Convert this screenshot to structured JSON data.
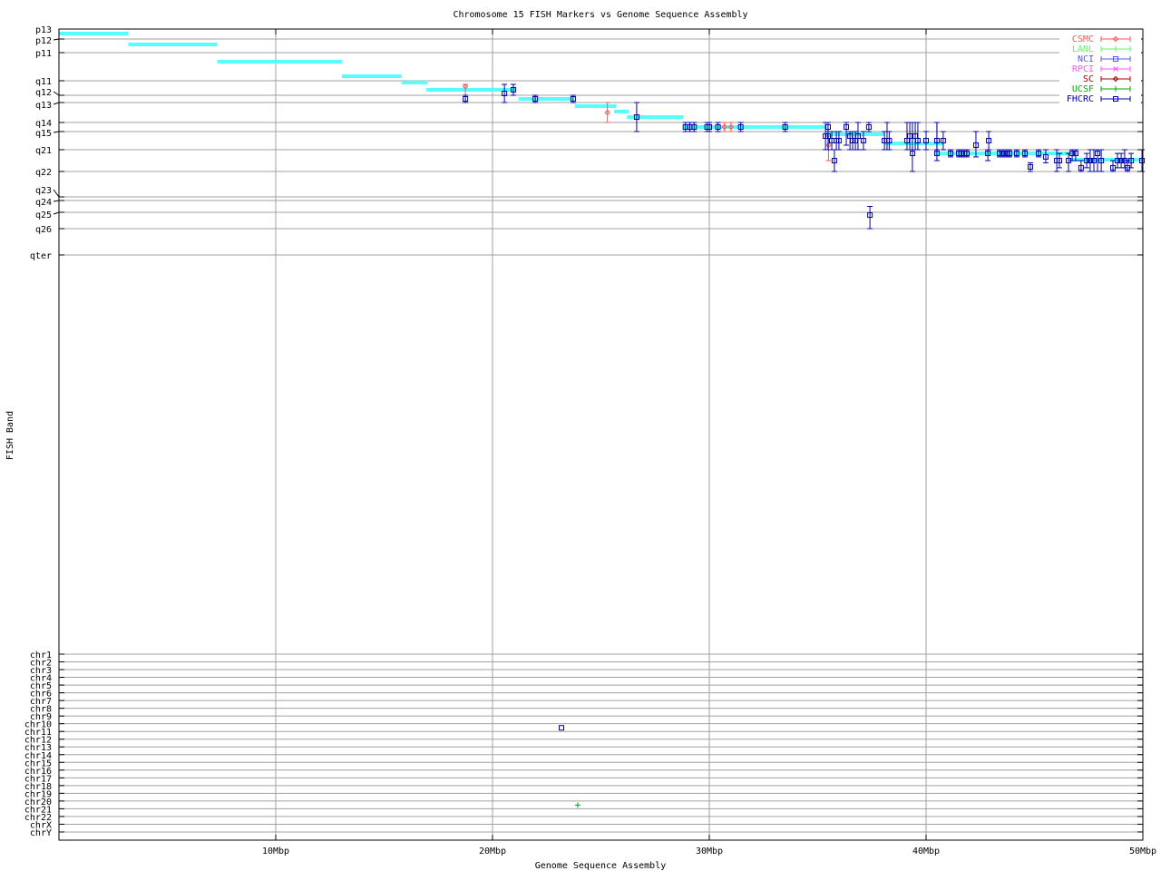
{
  "chart_data": {
    "type": "scatter",
    "title": "Chromosome 15 FISH Markers vs Genome Sequence Assembly",
    "xlabel": "Genome Sequence Assembly",
    "ylabel": "FISH Band",
    "xlim": [
      0,
      50
    ],
    "x_ticks": [
      {
        "value": 10,
        "label": "10Mbp"
      },
      {
        "value": 20,
        "label": "20Mbp"
      },
      {
        "value": 30,
        "label": "30Mbp"
      },
      {
        "value": 40,
        "label": "40Mbp"
      },
      {
        "value": 50,
        "label": "50Mbp"
      }
    ],
    "grid": true,
    "legend_position": "top-right",
    "band_ticks": [
      "p13",
      "p12",
      "p11",
      "q11",
      "q12",
      "q13",
      "q14",
      "q15",
      "q21",
      "q22",
      "q23",
      "q24",
      "q25",
      "q26",
      "qter"
    ],
    "chromosome_ticks": [
      "chr1",
      "chr2",
      "chr3",
      "chr4",
      "chr5",
      "chr6",
      "chr7",
      "chr8",
      "chr9",
      "chr10",
      "chr11",
      "chr12",
      "chr13",
      "chr14",
      "chr15",
      "chr16",
      "chr17",
      "chr18",
      "chr19",
      "chr20",
      "chr21",
      "chr22",
      "chrX",
      "chrY"
    ],
    "assembly_color": "#55ffff",
    "assembly_segments": [
      {
        "x_start": 0,
        "x_end": 3.2,
        "band_pos": 0.45
      },
      {
        "x_start": 3.2,
        "x_end": 7.3,
        "band_pos": 1.4
      },
      {
        "x_start": 7.3,
        "x_end": 13.05,
        "band_pos": 2.32
      },
      {
        "x_start": 13.05,
        "x_end": 15.8,
        "band_pos": 2.84
      },
      {
        "x_start": 15.8,
        "x_end": 17.0,
        "band_pos": 3.12
      },
      {
        "x_start": 16.95,
        "x_end": 21.1,
        "band_pos": 3.62
      },
      {
        "x_start": 21.2,
        "x_end": 23.7,
        "band_pos": 4.5
      },
      {
        "x_start": 23.8,
        "x_end": 25.7,
        "band_pos": 5.18
      },
      {
        "x_start": 25.6,
        "x_end": 26.3,
        "band_pos": 5.45
      },
      {
        "x_start": 26.2,
        "x_end": 28.8,
        "band_pos": 5.73
      },
      {
        "x_start": 28.8,
        "x_end": 35.4,
        "band_pos": 6.5
      },
      {
        "x_start": 35.4,
        "x_end": 38.1,
        "band_pos": 7.15
      },
      {
        "x_start": 38.1,
        "x_end": 40.8,
        "band_pos": 7.65
      },
      {
        "x_start": 40.4,
        "x_end": 46.6,
        "band_pos": 8.17
      },
      {
        "x_start": 46.6,
        "x_end": 50,
        "band_pos": 8.46
      }
    ],
    "point_fields": [
      "x_mbp",
      "band_pos",
      "band_low",
      "band_high"
    ],
    "series": [
      {
        "name": "CSMC",
        "color": "#ff5555",
        "marker": "diamond",
        "points": [
          [
            18.75,
            3.4,
            3.25,
            4
          ],
          [
            25.3,
            5.5,
            5,
            6
          ],
          [
            30.7,
            6.5,
            6,
            7
          ],
          [
            31.0,
            6.5,
            6,
            7
          ],
          [
            35.5,
            7.75,
            7.25,
            8.5
          ]
        ]
      },
      {
        "name": "LANL",
        "color": "#55ff55",
        "marker": "tick",
        "points": []
      },
      {
        "name": "NCI",
        "color": "#5555ff",
        "marker": "square",
        "points": []
      },
      {
        "name": "RPCI",
        "color": "#ff55ff",
        "marker": "cross",
        "points": []
      },
      {
        "name": "SC",
        "color": "#aa0000",
        "marker": "diamond",
        "points": []
      },
      {
        "name": "UCSF",
        "color": "#00aa00",
        "marker": "tick",
        "points": []
      },
      {
        "name": "FHCRC",
        "color": "#0000aa",
        "marker": "square",
        "points": [
          [
            18.75,
            4.5,
            4,
            5
          ],
          [
            20.55,
            3.875,
            3.25,
            5
          ],
          [
            20.96,
            3.62,
            3.25,
            4
          ],
          [
            21.97,
            4.5,
            4,
            5
          ],
          [
            23.72,
            4.5,
            4,
            5
          ],
          [
            26.65,
            5.73,
            5,
            7
          ],
          [
            28.9,
            6.5,
            6,
            7
          ],
          [
            29.1,
            6.5,
            6,
            7
          ],
          [
            29.3,
            6.5,
            6,
            7
          ],
          [
            29.9,
            6.5,
            6,
            7
          ],
          [
            30.0,
            6.5,
            6,
            7
          ],
          [
            30.4,
            6.5,
            6,
            7
          ],
          [
            31.45,
            6.5,
            6,
            7
          ],
          [
            33.5,
            6.5,
            6,
            7
          ],
          [
            35.36,
            7.25,
            6,
            8
          ],
          [
            35.48,
            6.5,
            6,
            7
          ],
          [
            35.48,
            7.25,
            6,
            8
          ],
          [
            35.65,
            7.5,
            7,
            8
          ],
          [
            35.77,
            8.5,
            8,
            9
          ],
          [
            35.86,
            7.5,
            7,
            8
          ],
          [
            35.98,
            7.5,
            7,
            8
          ],
          [
            36.32,
            6.5,
            6,
            7.75
          ],
          [
            36.49,
            7.25,
            7,
            8
          ],
          [
            36.61,
            7.5,
            7,
            8
          ],
          [
            36.74,
            7.5,
            7,
            8
          ],
          [
            36.86,
            7.25,
            6,
            8
          ],
          [
            37.11,
            7.5,
            7,
            8
          ],
          [
            37.36,
            6.5,
            6,
            7
          ],
          [
            37.41,
            12.17,
            11.5,
            13
          ],
          [
            38.08,
            7.5,
            7,
            8
          ],
          [
            38.2,
            7.5,
            6,
            8
          ],
          [
            38.3,
            7.5,
            7,
            8
          ],
          [
            39.12,
            7.5,
            6,
            8
          ],
          [
            39.25,
            7.25,
            6,
            8
          ],
          [
            39.37,
            8.17,
            6,
            9
          ],
          [
            39.5,
            7.25,
            6,
            8
          ],
          [
            39.62,
            7.5,
            6,
            8
          ],
          [
            40.0,
            7.5,
            7,
            8
          ],
          [
            40.5,
            8.17,
            6,
            8.5
          ],
          [
            40.5,
            7.5,
            6,
            8
          ],
          [
            40.79,
            7.5,
            7,
            8
          ],
          [
            41.13,
            8.17,
            8,
            8.33
          ],
          [
            41.51,
            8.17,
            8,
            8.33
          ],
          [
            41.63,
            8.17,
            8,
            8.33
          ],
          [
            41.76,
            8.17,
            8,
            8.33
          ],
          [
            41.88,
            8.17,
            8,
            8.33
          ],
          [
            42.3,
            7.75,
            7,
            8.33
          ],
          [
            42.85,
            8.17,
            8,
            8.5
          ],
          [
            42.89,
            7.5,
            7,
            8
          ],
          [
            43.39,
            8.17,
            8,
            8.33
          ],
          [
            43.56,
            8.17,
            8,
            8.33
          ],
          [
            43.72,
            8.17,
            8,
            8.33
          ],
          [
            43.85,
            8.17,
            8,
            8.33
          ],
          [
            44.18,
            8.17,
            8,
            8.33
          ],
          [
            44.56,
            8.17,
            8,
            8.33
          ],
          [
            44.81,
            8.79,
            8.6,
            9
          ],
          [
            45.19,
            8.17,
            8,
            8.33
          ],
          [
            45.52,
            8.33,
            8,
            8.6
          ],
          [
            46.03,
            8.5,
            8,
            9
          ],
          [
            46.15,
            8.5,
            8.17,
            8.83
          ],
          [
            46.57,
            8.5,
            8.17,
            9
          ],
          [
            46.74,
            8.17,
            8,
            8.5
          ],
          [
            46.9,
            8.17,
            8,
            8.5
          ],
          [
            47.15,
            8.83,
            8.5,
            9
          ],
          [
            47.41,
            8.5,
            8.17,
            8.83
          ],
          [
            47.57,
            8.5,
            8,
            9
          ],
          [
            47.74,
            8.5,
            8,
            9
          ],
          [
            47.91,
            8.17,
            8,
            9
          ],
          [
            48.08,
            8.5,
            8,
            9
          ],
          [
            48.62,
            8.83,
            8.5,
            9
          ],
          [
            48.83,
            8.5,
            8.17,
            8.83
          ],
          [
            49.0,
            8.5,
            8.17,
            8.83
          ],
          [
            49.16,
            8.5,
            8,
            8.83
          ],
          [
            49.29,
            8.83,
            8.5,
            9
          ],
          [
            49.46,
            8.5,
            8.17,
            8.83
          ],
          [
            49.96,
            8.5,
            8,
            9
          ]
        ]
      }
    ],
    "other_chromosome_points": [
      {
        "series": "FHCRC",
        "x_mbp": 23.18,
        "chromosome": "chr11"
      },
      {
        "series": "UCSF",
        "x_mbp": 23.93,
        "chromosome": "chr21"
      }
    ]
  }
}
